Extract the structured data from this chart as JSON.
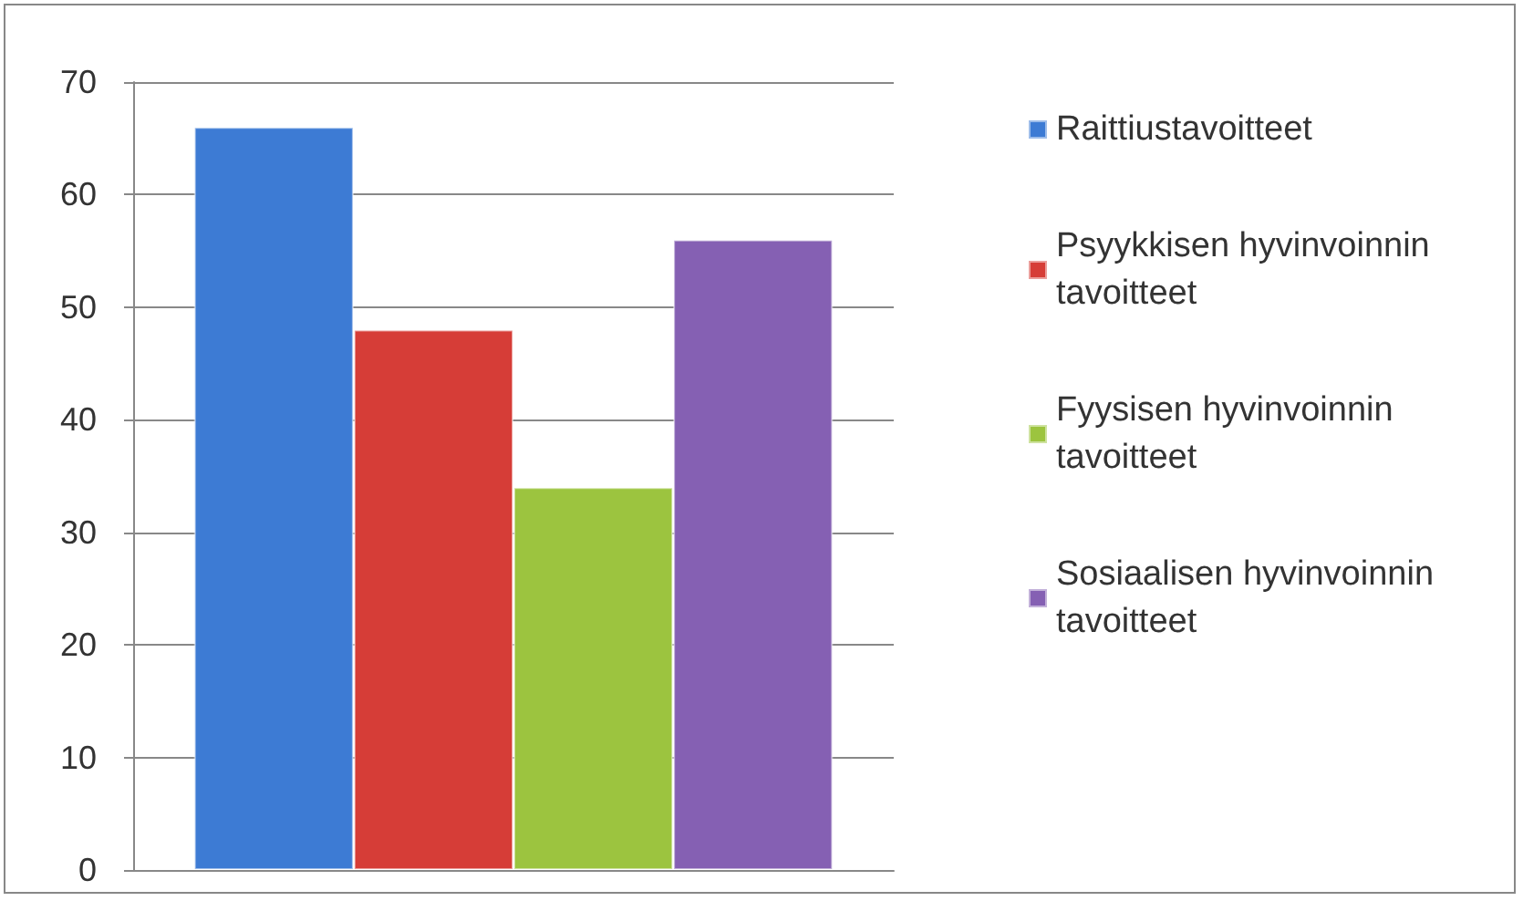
{
  "chart_data": {
    "type": "bar",
    "categories": [
      null
    ],
    "series": [
      {
        "name": "Raittiustavoitteet",
        "color": "#3d7bd4",
        "values": [
          66
        ]
      },
      {
        "name": "Psyykkisen hyvinvoinnin tavoitteet",
        "color": "#d63d37",
        "values": [
          48
        ]
      },
      {
        "name": "Fyysisen hyvinvoinnin tavoitteet",
        "color": "#9cc43f",
        "values": [
          34
        ]
      },
      {
        "name": "Sosiaalisen hyvinvoinnin tavoitteet",
        "color": "#8560b3",
        "values": [
          56
        ]
      }
    ],
    "ylim": [
      0,
      70
    ],
    "yticks": [
      0,
      10,
      20,
      30,
      40,
      50,
      60,
      70
    ],
    "grid": "y",
    "legend": "right"
  }
}
